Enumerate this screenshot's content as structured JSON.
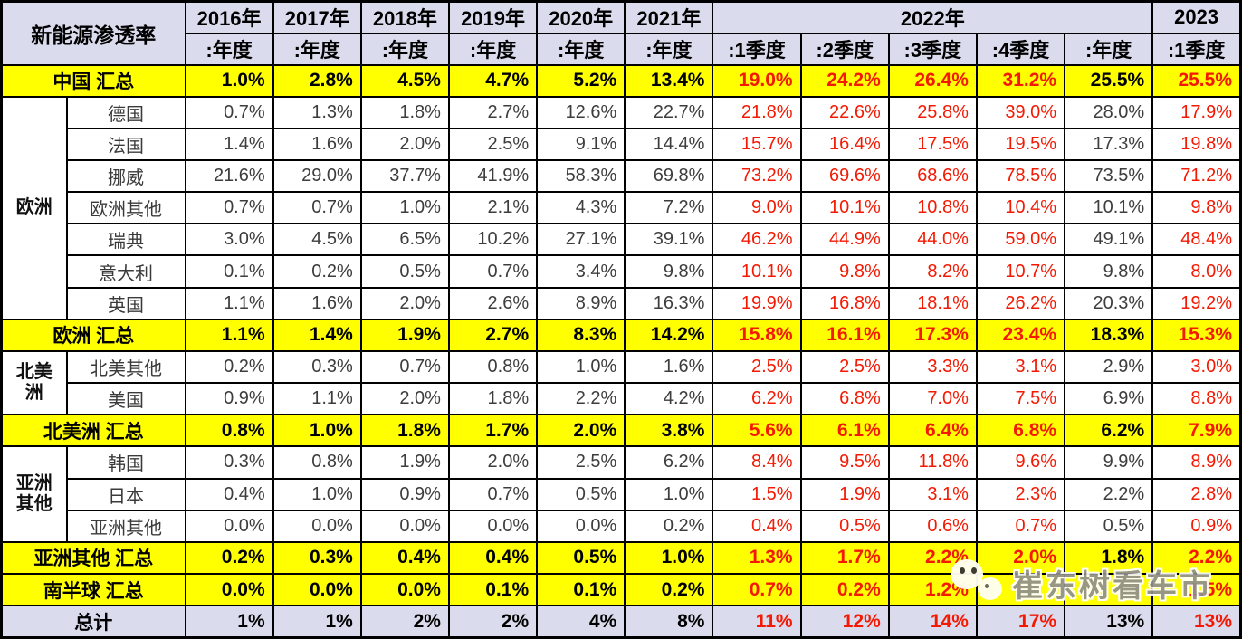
{
  "chart_data": {
    "type": "table",
    "title": "新能源渗透率",
    "corner_label": "新能源渗透率",
    "year_headers": [
      {
        "label": "2016年",
        "span": 1
      },
      {
        "label": "2017年",
        "span": 1
      },
      {
        "label": "2018年",
        "span": 1
      },
      {
        "label": "2019年",
        "span": 1
      },
      {
        "label": "2020年",
        "span": 1
      },
      {
        "label": "2021年",
        "span": 1
      },
      {
        "label": "2022年",
        "span": 5
      },
      {
        "label": "2023",
        "span": 1
      }
    ],
    "period_headers": [
      ":年度",
      ":年度",
      ":年度",
      ":年度",
      ":年度",
      ":年度",
      ":1季度",
      ":2季度",
      ":3季度",
      ":4季度",
      ":年度",
      ":1季度"
    ],
    "rows": [
      {
        "kind": "summary",
        "label": "中国 汇总",
        "values": [
          "1.0%",
          "2.8%",
          "4.5%",
          "4.7%",
          "5.2%",
          "13.4%",
          "19.0%",
          "24.2%",
          "26.4%",
          "31.2%",
          "25.5%",
          "25.5%"
        ]
      },
      {
        "kind": "country",
        "group": {
          "label": "欧洲",
          "rowspan": 7
        },
        "label": "德国",
        "values": [
          "0.7%",
          "1.3%",
          "1.8%",
          "2.7%",
          "12.6%",
          "22.7%",
          "21.8%",
          "22.6%",
          "25.8%",
          "39.0%",
          "28.0%",
          "17.9%"
        ]
      },
      {
        "kind": "country",
        "label": "法国",
        "values": [
          "1.4%",
          "1.6%",
          "2.0%",
          "2.5%",
          "9.1%",
          "14.4%",
          "15.7%",
          "16.4%",
          "17.5%",
          "19.5%",
          "17.3%",
          "19.8%"
        ]
      },
      {
        "kind": "country",
        "label": "挪威",
        "values": [
          "21.6%",
          "29.0%",
          "37.7%",
          "41.9%",
          "58.3%",
          "69.8%",
          "73.2%",
          "69.6%",
          "68.6%",
          "78.5%",
          "73.5%",
          "71.2%"
        ]
      },
      {
        "kind": "country",
        "label": "欧洲其他",
        "values": [
          "0.7%",
          "0.7%",
          "1.0%",
          "2.1%",
          "4.3%",
          "7.2%",
          "9.0%",
          "10.1%",
          "10.8%",
          "10.4%",
          "10.1%",
          "9.8%"
        ]
      },
      {
        "kind": "country",
        "label": "瑞典",
        "values": [
          "3.0%",
          "4.5%",
          "6.5%",
          "10.2%",
          "27.1%",
          "39.1%",
          "46.2%",
          "44.9%",
          "44.0%",
          "59.0%",
          "49.1%",
          "48.4%"
        ]
      },
      {
        "kind": "country",
        "label": "意大利",
        "values": [
          "0.1%",
          "0.2%",
          "0.5%",
          "0.7%",
          "3.4%",
          "9.8%",
          "10.1%",
          "9.8%",
          "8.2%",
          "10.7%",
          "9.8%",
          "8.0%"
        ]
      },
      {
        "kind": "country",
        "label": "英国",
        "values": [
          "1.1%",
          "1.6%",
          "2.0%",
          "2.6%",
          "8.9%",
          "16.3%",
          "19.9%",
          "16.8%",
          "18.1%",
          "26.2%",
          "20.3%",
          "19.2%"
        ]
      },
      {
        "kind": "summary",
        "label": "欧洲 汇总",
        "values": [
          "1.1%",
          "1.4%",
          "1.9%",
          "2.7%",
          "8.3%",
          "14.2%",
          "15.8%",
          "16.1%",
          "17.3%",
          "23.4%",
          "18.3%",
          "15.3%"
        ]
      },
      {
        "kind": "country",
        "group": {
          "label": "北美洲",
          "rowspan": 2
        },
        "label": "北美其他",
        "values": [
          "0.2%",
          "0.3%",
          "0.7%",
          "0.8%",
          "1.0%",
          "1.6%",
          "2.5%",
          "2.5%",
          "3.3%",
          "3.1%",
          "2.9%",
          "3.0%"
        ]
      },
      {
        "kind": "country",
        "label": "美国",
        "values": [
          "0.9%",
          "1.1%",
          "2.0%",
          "1.8%",
          "2.2%",
          "4.2%",
          "6.2%",
          "6.8%",
          "7.0%",
          "7.5%",
          "6.9%",
          "8.8%"
        ]
      },
      {
        "kind": "summary",
        "label": "北美洲 汇总",
        "values": [
          "0.8%",
          "1.0%",
          "1.8%",
          "1.7%",
          "2.0%",
          "3.8%",
          "5.6%",
          "6.1%",
          "6.4%",
          "6.8%",
          "6.2%",
          "7.9%"
        ]
      },
      {
        "kind": "country",
        "group": {
          "label": "亚洲其他",
          "rowspan": 3
        },
        "label": "韩国",
        "values": [
          "0.3%",
          "0.8%",
          "1.9%",
          "2.0%",
          "2.5%",
          "6.2%",
          "8.4%",
          "9.5%",
          "11.8%",
          "9.6%",
          "9.9%",
          "8.9%"
        ]
      },
      {
        "kind": "country",
        "label": "日本",
        "values": [
          "0.4%",
          "1.0%",
          "0.9%",
          "0.7%",
          "0.5%",
          "1.0%",
          "1.5%",
          "1.9%",
          "3.1%",
          "2.3%",
          "2.2%",
          "2.8%"
        ]
      },
      {
        "kind": "country",
        "label": "亚洲其他",
        "values": [
          "0.0%",
          "0.0%",
          "0.0%",
          "0.0%",
          "0.0%",
          "0.2%",
          "0.4%",
          "0.5%",
          "0.6%",
          "0.7%",
          "0.5%",
          "0.9%"
        ]
      },
      {
        "kind": "summary",
        "label": "亚洲其他 汇总",
        "values": [
          "0.2%",
          "0.3%",
          "0.4%",
          "0.4%",
          "0.5%",
          "1.0%",
          "1.3%",
          "1.7%",
          "2.2%",
          "2.0%",
          "1.8%",
          "2.2%"
        ]
      },
      {
        "kind": "summary",
        "label": "南半球 汇总",
        "values": [
          "0.0%",
          "0.0%",
          "0.0%",
          "0.1%",
          "0.1%",
          "0.2%",
          "0.7%",
          "0.2%",
          "1.2%",
          "",
          "",
          "1.5%"
        ]
      },
      {
        "kind": "total",
        "label": "总计",
        "values": [
          "1%",
          "1%",
          "2%",
          "2%",
          "4%",
          "8%",
          "11%",
          "12%",
          "14%",
          "17%",
          "13%",
          "13%"
        ]
      }
    ],
    "red_value_columns": [
      6,
      7,
      8,
      9,
      11
    ],
    "legend_note": "",
    "colors": {
      "header_bg": "#DBDBEE",
      "summary_bg": "#FFFF00",
      "red_text": "#F41903",
      "body_text": "#3D3D3D",
      "border": "#000000"
    }
  },
  "watermark": {
    "text": "崔东树看车市",
    "icon": "wechat-icon"
  }
}
